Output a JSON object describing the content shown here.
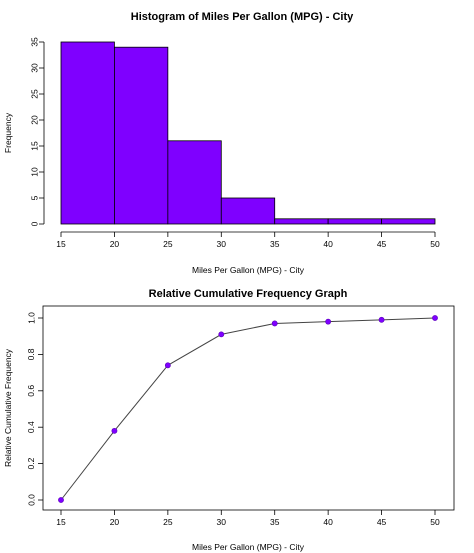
{
  "chart_data": [
    {
      "type": "bar",
      "title": "Histogram of Miles Per Gallon (MPG) - City",
      "xlabel": "Miles Per Gallon (MPG) - City",
      "ylabel": "Frequency",
      "bin_edges": [
        15,
        20,
        25,
        30,
        35,
        40,
        45,
        50
      ],
      "values": [
        35,
        34,
        16,
        5,
        1,
        1,
        1
      ],
      "xlim": [
        15,
        50
      ],
      "ylim": [
        0,
        35
      ],
      "xticks": [
        15,
        20,
        25,
        30,
        35,
        40,
        45,
        50
      ],
      "yticks": [
        0,
        5,
        10,
        15,
        20,
        25,
        30,
        35
      ],
      "bar_color": "#7f00ff",
      "grid": false
    },
    {
      "type": "line",
      "title": "Relative Cumulative Frequency Graph",
      "xlabel": "Miles Per Gallon (MPG) - City",
      "ylabel": "Relative Cumulative Frequency",
      "x": [
        15,
        20,
        25,
        30,
        35,
        40,
        45,
        50
      ],
      "values": [
        0.0,
        0.38,
        0.74,
        0.91,
        0.97,
        0.98,
        0.99,
        1.0
      ],
      "xlim": [
        15,
        50
      ],
      "ylim": [
        0,
        1
      ],
      "xticks": [
        15,
        20,
        25,
        30,
        35,
        40,
        45,
        50
      ],
      "yticks": [
        "0.0",
        "0.2",
        "0.4",
        "0.6",
        "0.8",
        "1.0"
      ],
      "point_color": "#7f00ff",
      "grid": false
    }
  ]
}
